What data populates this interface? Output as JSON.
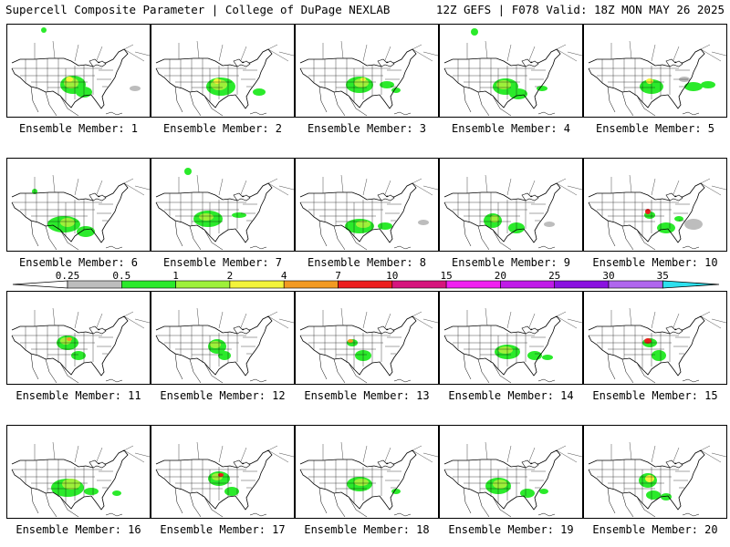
{
  "header": {
    "title": "Supercell Composite Parameter | College of DuPage NEXLAB",
    "run_info": "12Z GEFS | F078 Valid: 18Z MON MAY 26 2025"
  },
  "colorbar": {
    "ticks": [
      "0.25",
      "0.5",
      "1",
      "2",
      "4",
      "7",
      "10",
      "15",
      "20",
      "25",
      "30",
      "35"
    ],
    "colors": [
      "#bdbdbd",
      "#2bea2b",
      "#9ef03a",
      "#f4f43a",
      "#f29a22",
      "#ec1e1e",
      "#d6157d",
      "#f020f0",
      "#c01ae8",
      "#8a12e0",
      "#b066ee",
      "#2ee0ee"
    ]
  },
  "panels": [
    {
      "caption": "Ensemble Member: 1"
    },
    {
      "caption": "Ensemble Member: 2"
    },
    {
      "caption": "Ensemble Member: 3"
    },
    {
      "caption": "Ensemble Member: 4"
    },
    {
      "caption": "Ensemble Member: 5"
    },
    {
      "caption": "Ensemble Member: 6"
    },
    {
      "caption": "Ensemble Member: 7"
    },
    {
      "caption": "Ensemble Member: 8"
    },
    {
      "caption": "Ensemble Member: 9"
    },
    {
      "caption": "Ensemble Member: 10"
    },
    {
      "caption": "Ensemble Member: 11"
    },
    {
      "caption": "Ensemble Member: 12"
    },
    {
      "caption": "Ensemble Member: 13"
    },
    {
      "caption": "Ensemble Member: 14"
    },
    {
      "caption": "Ensemble Member: 15"
    },
    {
      "caption": "Ensemble Member: 16"
    },
    {
      "caption": "Ensemble Member: 17"
    },
    {
      "caption": "Ensemble Member: 18"
    },
    {
      "caption": "Ensemble Member: 19"
    },
    {
      "caption": "Ensemble Member: 20"
    }
  ]
}
